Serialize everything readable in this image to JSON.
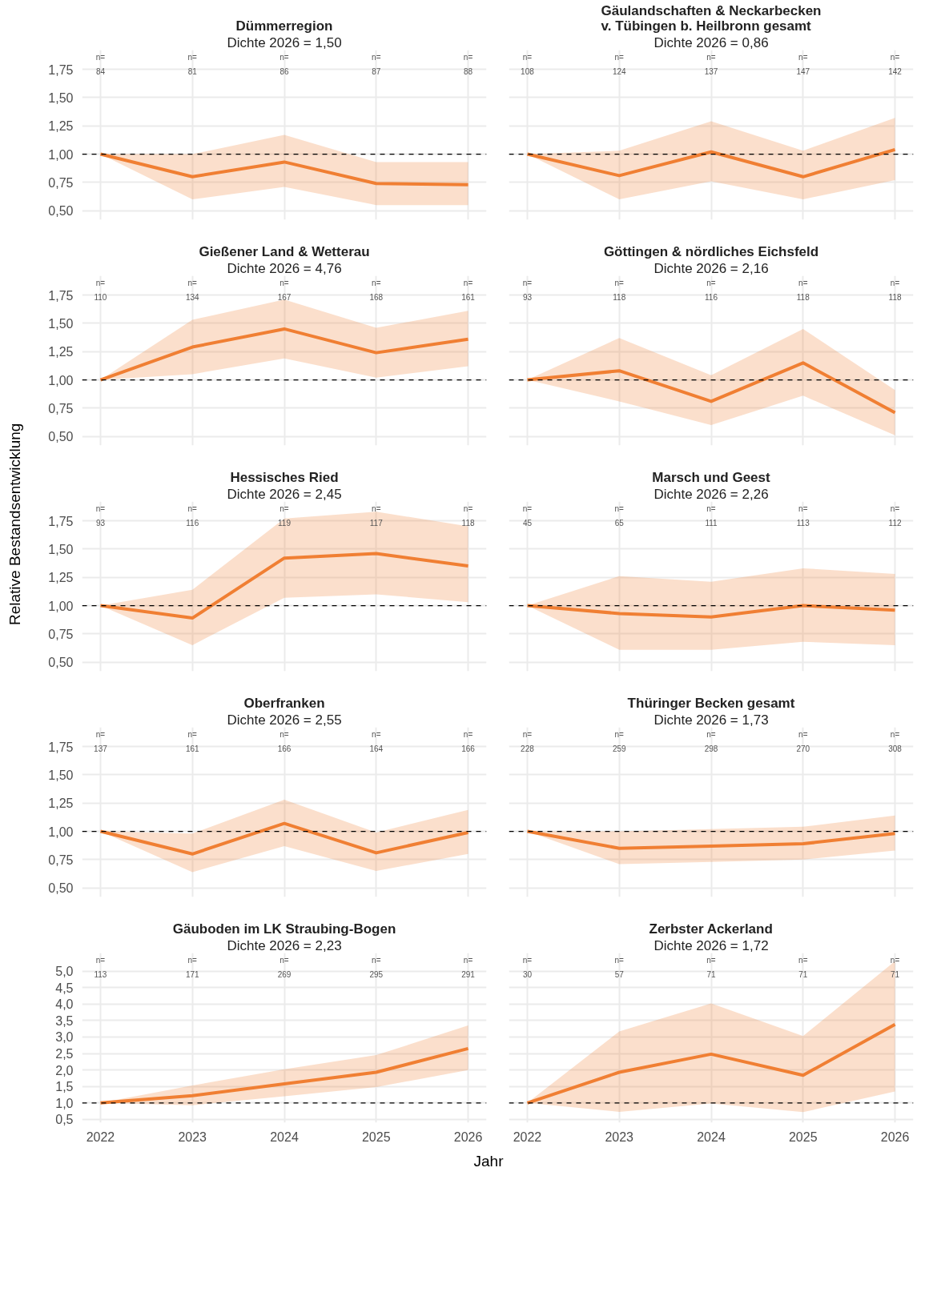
{
  "chart_data": [
    {
      "type": "line",
      "title": "Dümmerregion",
      "subtitle": "Dichte 2026 = 1,50",
      "x": [
        2022,
        2023,
        2024,
        2025,
        2026
      ],
      "series": [
        {
          "color": "#f07f33",
          "values": [
            1.0,
            0.8,
            0.93,
            0.74,
            0.73
          ],
          "lower": [
            1.0,
            0.6,
            0.71,
            0.55,
            0.55
          ],
          "upper": [
            1.0,
            1.0,
            1.17,
            0.93,
            0.93
          ]
        }
      ],
      "xlim": [
        2021.8,
        2026.2
      ],
      "ylim": [
        0.42,
        1.92
      ],
      "xticks": [
        2022,
        2023,
        2024,
        2025,
        2026
      ],
      "yticks": [
        {
          "value": 0.5,
          "label": "0,50"
        },
        {
          "value": 0.75,
          "label": "0,75"
        },
        {
          "value": 1.0,
          "label": "1,00"
        },
        {
          "value": 1.25,
          "label": "1,25"
        },
        {
          "value": 1.5,
          "label": "1,50"
        },
        {
          "value": 1.75,
          "label": "1,75"
        }
      ],
      "ref_lines": [
        {
          "axis": "y",
          "value": 1.0,
          "line_style": "dashed",
          "color": "#000000"
        }
      ],
      "grid": true,
      "tick_labels": "y",
      "annotations": [
        "n=",
        "84",
        "n=",
        "81",
        "n=",
        "86",
        "n=",
        "87",
        "n=",
        "88"
      ]
    },
    {
      "type": "line",
      "title": "Gäulandschaften & Neckarbecken\nv. Tübingen b. Heilbronn gesamt",
      "subtitle": "Dichte 2026 = 0,86",
      "x": [
        2022,
        2023,
        2024,
        2025,
        2026
      ],
      "series": [
        {
          "color": "#f07f33",
          "values": [
            1.0,
            0.81,
            1.02,
            0.8,
            1.04
          ],
          "lower": [
            1.0,
            0.6,
            0.76,
            0.6,
            0.77
          ],
          "upper": [
            1.0,
            1.03,
            1.29,
            1.03,
            1.32
          ]
        }
      ],
      "xlim": [
        2021.8,
        2026.2
      ],
      "ylim": [
        0.42,
        1.92
      ],
      "xticks": [
        2022,
        2023,
        2024,
        2025,
        2026
      ],
      "yticks": [
        {
          "value": 0.5,
          "label": null
        },
        {
          "value": 0.75,
          "label": null
        },
        {
          "value": 1.0,
          "label": null
        },
        {
          "value": 1.25,
          "label": null
        },
        {
          "value": 1.5,
          "label": null
        },
        {
          "value": 1.75,
          "label": null
        }
      ],
      "ref_lines": [
        {
          "axis": "y",
          "value": 1.0,
          "line_style": "dashed",
          "color": "#000000"
        }
      ],
      "grid": true,
      "tick_labels": false,
      "annotations": [
        "n=",
        "108",
        "n=",
        "124",
        "n=",
        "137",
        "n=",
        "147",
        "n=",
        "142"
      ]
    },
    {
      "type": "line",
      "title": "Gießener Land & Wetterau",
      "subtitle": "Dichte 2026 = 4,76",
      "x": [
        2022,
        2023,
        2024,
        2025,
        2026
      ],
      "series": [
        {
          "color": "#f07f33",
          "values": [
            1.0,
            1.29,
            1.45,
            1.24,
            1.36
          ],
          "lower": [
            1.0,
            1.05,
            1.19,
            1.02,
            1.12
          ],
          "upper": [
            1.0,
            1.53,
            1.71,
            1.46,
            1.61
          ]
        }
      ],
      "xlim": [
        2021.8,
        2026.2
      ],
      "ylim": [
        0.42,
        1.92
      ],
      "xticks": [
        2022,
        2023,
        2024,
        2025,
        2026
      ],
      "yticks": [
        {
          "value": 0.5,
          "label": "0,50"
        },
        {
          "value": 0.75,
          "label": "0,75"
        },
        {
          "value": 1.0,
          "label": "1,00"
        },
        {
          "value": 1.25,
          "label": "1,25"
        },
        {
          "value": 1.5,
          "label": "1,50"
        },
        {
          "value": 1.75,
          "label": "1,75"
        }
      ],
      "ref_lines": [
        {
          "axis": "y",
          "value": 1.0,
          "line_style": "dashed",
          "color": "#000000"
        }
      ],
      "grid": true,
      "tick_labels": "y",
      "annotations": [
        "n=",
        "110",
        "n=",
        "134",
        "n=",
        "167",
        "n=",
        "168",
        "n=",
        "161"
      ]
    },
    {
      "type": "line",
      "title": "Göttingen & nördliches Eichsfeld",
      "subtitle": "Dichte 2026 = 2,16",
      "x": [
        2022,
        2023,
        2024,
        2025,
        2026
      ],
      "series": [
        {
          "color": "#f07f33",
          "values": [
            1.0,
            1.08,
            0.81,
            1.15,
            0.71
          ],
          "lower": [
            1.0,
            0.81,
            0.6,
            0.86,
            0.51
          ],
          "upper": [
            1.0,
            1.37,
            1.04,
            1.45,
            0.91
          ]
        }
      ],
      "xlim": [
        2021.8,
        2026.2
      ],
      "ylim": [
        0.42,
        1.92
      ],
      "xticks": [
        2022,
        2023,
        2024,
        2025,
        2026
      ],
      "yticks": [
        {
          "value": 0.5,
          "label": null
        },
        {
          "value": 0.75,
          "label": null
        },
        {
          "value": 1.0,
          "label": null
        },
        {
          "value": 1.25,
          "label": null
        },
        {
          "value": 1.5,
          "label": null
        },
        {
          "value": 1.75,
          "label": null
        }
      ],
      "ref_lines": [
        {
          "axis": "y",
          "value": 1.0,
          "line_style": "dashed",
          "color": "#000000"
        }
      ],
      "grid": true,
      "tick_labels": false,
      "annotations": [
        "n=",
        "93",
        "n=",
        "118",
        "n=",
        "116",
        "n=",
        "118",
        "n=",
        "118"
      ]
    },
    {
      "type": "line",
      "title": "Hessisches Ried",
      "subtitle": "Dichte 2026 = 2,45",
      "ylabel": "Relative Bestandsentwicklung",
      "x": [
        2022,
        2023,
        2024,
        2025,
        2026
      ],
      "series": [
        {
          "color": "#f07f33",
          "values": [
            1.0,
            0.89,
            1.42,
            1.46,
            1.35
          ],
          "lower": [
            1.0,
            0.65,
            1.07,
            1.1,
            1.03
          ],
          "upper": [
            1.0,
            1.14,
            1.77,
            1.83,
            1.7
          ]
        }
      ],
      "xlim": [
        2021.8,
        2026.2
      ],
      "ylim": [
        0.42,
        1.92
      ],
      "xticks": [
        2022,
        2023,
        2024,
        2025,
        2026
      ],
      "yticks": [
        {
          "value": 0.5,
          "label": "0,50"
        },
        {
          "value": 0.75,
          "label": "0,75"
        },
        {
          "value": 1.0,
          "label": "1,00"
        },
        {
          "value": 1.25,
          "label": "1,25"
        },
        {
          "value": 1.5,
          "label": "1,50"
        },
        {
          "value": 1.75,
          "label": "1,75"
        }
      ],
      "ref_lines": [
        {
          "axis": "y",
          "value": 1.0,
          "line_style": "dashed",
          "color": "#000000"
        }
      ],
      "grid": true,
      "tick_labels": "y",
      "annotations": [
        "n=",
        "93",
        "n=",
        "116",
        "n=",
        "119",
        "n=",
        "117",
        "n=",
        "118"
      ]
    },
    {
      "type": "line",
      "title": "Marsch und Geest",
      "subtitle": "Dichte 2026 = 2,26",
      "x": [
        2022,
        2023,
        2024,
        2025,
        2026
      ],
      "series": [
        {
          "color": "#f07f33",
          "values": [
            1.0,
            0.93,
            0.9,
            1.0,
            0.96
          ],
          "lower": [
            1.0,
            0.61,
            0.61,
            0.68,
            0.65
          ],
          "upper": [
            1.0,
            1.26,
            1.21,
            1.33,
            1.28
          ]
        }
      ],
      "xlim": [
        2021.8,
        2026.2
      ],
      "ylim": [
        0.42,
        1.92
      ],
      "xticks": [
        2022,
        2023,
        2024,
        2025,
        2026
      ],
      "yticks": [
        {
          "value": 0.5,
          "label": null
        },
        {
          "value": 0.75,
          "label": null
        },
        {
          "value": 1.0,
          "label": null
        },
        {
          "value": 1.25,
          "label": null
        },
        {
          "value": 1.5,
          "label": null
        },
        {
          "value": 1.75,
          "label": null
        }
      ],
      "ref_lines": [
        {
          "axis": "y",
          "value": 1.0,
          "line_style": "dashed",
          "color": "#000000"
        }
      ],
      "grid": true,
      "tick_labels": false,
      "annotations": [
        "n=",
        "45",
        "n=",
        "65",
        "n=",
        "111",
        "n=",
        "113",
        "n=",
        "112"
      ]
    },
    {
      "type": "line",
      "title": "Oberfranken",
      "subtitle": "Dichte 2026 = 2,55",
      "x": [
        2022,
        2023,
        2024,
        2025,
        2026
      ],
      "series": [
        {
          "color": "#f07f33",
          "values": [
            1.0,
            0.8,
            1.07,
            0.81,
            0.99
          ],
          "lower": [
            1.0,
            0.64,
            0.87,
            0.65,
            0.8
          ],
          "upper": [
            1.0,
            0.98,
            1.28,
            0.99,
            1.19
          ]
        }
      ],
      "xlim": [
        2021.8,
        2026.2
      ],
      "ylim": [
        0.42,
        1.92
      ],
      "xticks": [
        2022,
        2023,
        2024,
        2025,
        2026
      ],
      "yticks": [
        {
          "value": 0.5,
          "label": "0,50"
        },
        {
          "value": 0.75,
          "label": "0,75"
        },
        {
          "value": 1.0,
          "label": "1,00"
        },
        {
          "value": 1.25,
          "label": "1,25"
        },
        {
          "value": 1.5,
          "label": "1,50"
        },
        {
          "value": 1.75,
          "label": "1,75"
        }
      ],
      "ref_lines": [
        {
          "axis": "y",
          "value": 1.0,
          "line_style": "dashed",
          "color": "#000000"
        }
      ],
      "grid": true,
      "tick_labels": "y",
      "annotations": [
        "n=",
        "137",
        "n=",
        "161",
        "n=",
        "166",
        "n=",
        "164",
        "n=",
        "166"
      ]
    },
    {
      "type": "line",
      "title": "Thüringer Becken gesamt",
      "subtitle": "Dichte 2026 = 1,73",
      "x": [
        2022,
        2023,
        2024,
        2025,
        2026
      ],
      "series": [
        {
          "color": "#f07f33",
          "values": [
            1.0,
            0.85,
            0.87,
            0.89,
            0.98
          ],
          "lower": [
            1.0,
            0.71,
            0.73,
            0.75,
            0.83
          ],
          "upper": [
            1.0,
            1.0,
            1.02,
            1.04,
            1.14
          ]
        }
      ],
      "xlim": [
        2021.8,
        2026.2
      ],
      "ylim": [
        0.42,
        1.92
      ],
      "xticks": [
        2022,
        2023,
        2024,
        2025,
        2026
      ],
      "yticks": [
        {
          "value": 0.5,
          "label": null
        },
        {
          "value": 0.75,
          "label": null
        },
        {
          "value": 1.0,
          "label": null
        },
        {
          "value": 1.25,
          "label": null
        },
        {
          "value": 1.5,
          "label": null
        },
        {
          "value": 1.75,
          "label": null
        }
      ],
      "ref_lines": [
        {
          "axis": "y",
          "value": 1.0,
          "line_style": "dashed",
          "color": "#000000"
        }
      ],
      "grid": true,
      "tick_labels": false,
      "annotations": [
        "n=",
        "228",
        "n=",
        "259",
        "n=",
        "298",
        "n=",
        "270",
        "n=",
        "308"
      ]
    },
    {
      "type": "line",
      "title": "Gäuboden im LK Straubing-Bogen",
      "subtitle": "Dichte 2026 = 2,23",
      "xlabel": "Jahr",
      "x": [
        2022,
        2023,
        2024,
        2025,
        2026
      ],
      "series": [
        {
          "color": "#f07f33",
          "values": [
            1.0,
            1.22,
            1.58,
            1.93,
            2.65
          ],
          "lower": [
            1.0,
            0.93,
            1.2,
            1.48,
            2.0
          ],
          "upper": [
            1.0,
            1.53,
            2.02,
            2.45,
            3.35
          ]
        }
      ],
      "xlim": [
        2021.8,
        2026.2
      ],
      "ylim": [
        0.4,
        5.55
      ],
      "xticks": [
        2022,
        2023,
        2024,
        2025,
        2026
      ],
      "yticks": [
        {
          "value": 0.5,
          "label": "0,5"
        },
        {
          "value": 1.0,
          "label": "1,0"
        },
        {
          "value": 1.5,
          "label": "1,5"
        },
        {
          "value": 2.0,
          "label": "2,0"
        },
        {
          "value": 2.5,
          "label": "2,5"
        },
        {
          "value": 3.0,
          "label": "3,0"
        },
        {
          "value": 3.5,
          "label": "3,5"
        },
        {
          "value": 4.0,
          "label": "4,0"
        },
        {
          "value": 4.5,
          "label": "4,5"
        },
        {
          "value": 5.0,
          "label": "5,0"
        }
      ],
      "ref_lines": [
        {
          "axis": "y",
          "value": 1.0,
          "line_style": "dashed",
          "color": "#000000"
        }
      ],
      "grid": true,
      "annotations": [
        "n=",
        "113",
        "n=",
        "171",
        "n=",
        "269",
        "n=",
        "295",
        "n=",
        "291"
      ]
    },
    {
      "type": "line",
      "title": "Zerbster Ackerland",
      "subtitle": "Dichte 2026 = 1,72",
      "x": [
        2022,
        2023,
        2024,
        2025,
        2026
      ],
      "series": [
        {
          "color": "#f07f33",
          "values": [
            1.0,
            1.93,
            2.48,
            1.84,
            3.38
          ],
          "lower": [
            1.0,
            0.73,
            0.98,
            0.72,
            1.35
          ],
          "upper": [
            1.0,
            3.17,
            4.02,
            3.03,
            5.3
          ]
        }
      ],
      "xlim": [
        2021.8,
        2026.2
      ],
      "ylim": [
        0.4,
        5.55
      ],
      "xticks": [
        2022,
        2023,
        2024,
        2025,
        2026
      ],
      "yticks": [
        {
          "value": 0.5,
          "label": null
        },
        {
          "value": 1.0,
          "label": null
        },
        {
          "value": 1.5,
          "label": null
        },
        {
          "value": 2.0,
          "label": null
        },
        {
          "value": 2.5,
          "label": null
        },
        {
          "value": 3.0,
          "label": null
        },
        {
          "value": 3.5,
          "label": null
        },
        {
          "value": 4.0,
          "label": null
        },
        {
          "value": 4.5,
          "label": null
        },
        {
          "value": 5.0,
          "label": null
        }
      ],
      "ref_lines": [
        {
          "axis": "y",
          "value": 1.0,
          "line_style": "dashed",
          "color": "#000000"
        }
      ],
      "grid": true,
      "tick_labels": "x",
      "annotations": [
        "n=",
        "30",
        "n=",
        "57",
        "n=",
        "71",
        "n=",
        "71",
        "n=",
        "71"
      ]
    }
  ]
}
